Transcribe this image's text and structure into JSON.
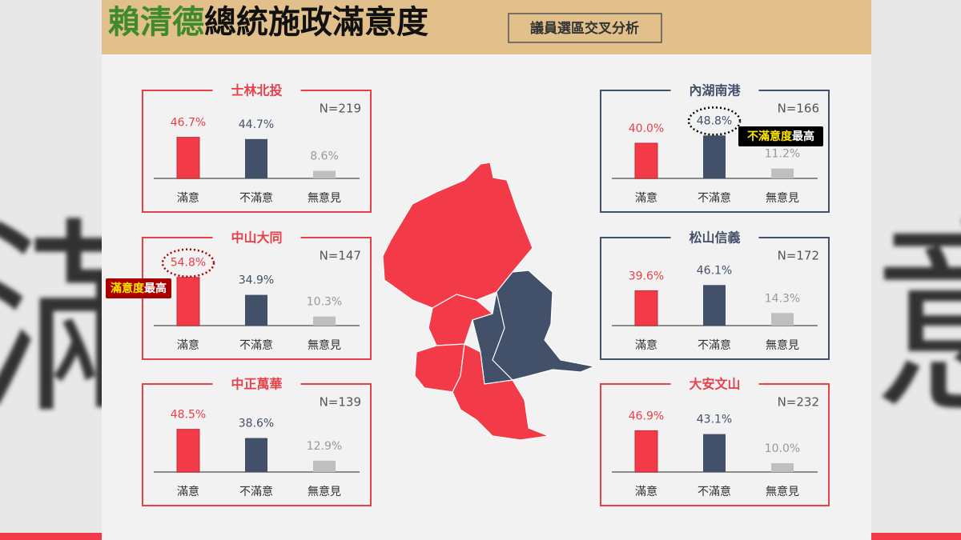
{
  "header": {
    "title_highlight": "賴清德",
    "title_rest": "總統施政滿意度",
    "subtitle": "議員選區交叉分析"
  },
  "background_text": [
    "滿",
    "意"
  ],
  "chart_data": [
    {
      "type": "bar",
      "title": "士林北投",
      "n_label": "N=219",
      "categories": [
        "滿意",
        "不滿意",
        "無意見"
      ],
      "values": [
        46.7,
        44.7,
        8.6
      ],
      "value_labels": [
        "46.7%",
        "44.7%",
        "8.6%"
      ],
      "colors": [
        "#f23a48",
        "#435069",
        "#bfbfbf"
      ],
      "label_colors": [
        "#e8404a",
        "#435069",
        "#999999"
      ],
      "border_color": "#e8404a"
    },
    {
      "type": "bar",
      "title": "中山大同",
      "n_label": "N=147",
      "categories": [
        "滿意",
        "不滿意",
        "無意見"
      ],
      "values": [
        54.8,
        34.9,
        10.3
      ],
      "value_labels": [
        "54.8%",
        "34.9%",
        "10.3%"
      ],
      "colors": [
        "#f23a48",
        "#435069",
        "#bfbfbf"
      ],
      "label_colors": [
        "#e8404a",
        "#435069",
        "#999999"
      ],
      "border_color": "#e8404a",
      "highlight": {
        "index": 0,
        "ring_color": "#a80000",
        "tag": [
          "滿意度",
          "最高"
        ],
        "tag_color": "#a80000"
      }
    },
    {
      "type": "bar",
      "title": "中正萬華",
      "n_label": "N=139",
      "categories": [
        "滿意",
        "不滿意",
        "無意見"
      ],
      "values": [
        48.5,
        38.6,
        12.9
      ],
      "value_labels": [
        "48.5%",
        "38.6%",
        "12.9%"
      ],
      "colors": [
        "#f23a48",
        "#435069",
        "#bfbfbf"
      ],
      "label_colors": [
        "#e8404a",
        "#435069",
        "#999999"
      ],
      "border_color": "#e8404a"
    },
    {
      "type": "bar",
      "title": "內湖南港",
      "n_label": "N=166",
      "categories": [
        "滿意",
        "不滿意",
        "無意見"
      ],
      "values": [
        40.0,
        48.8,
        11.2
      ],
      "value_labels": [
        "40.0%",
        "48.8%",
        "11.2%"
      ],
      "colors": [
        "#f23a48",
        "#435069",
        "#bfbfbf"
      ],
      "label_colors": [
        "#e8404a",
        "#435069",
        "#999999"
      ],
      "border_color": "#435069",
      "highlight": {
        "index": 1,
        "ring_color": "#000000",
        "tag": [
          "不滿意度",
          "最高"
        ],
        "tag_color": "#000000"
      }
    },
    {
      "type": "bar",
      "title": "松山信義",
      "n_label": "N=172",
      "categories": [
        "滿意",
        "不滿意",
        "無意見"
      ],
      "values": [
        39.6,
        46.1,
        14.3
      ],
      "value_labels": [
        "39.6%",
        "46.1%",
        "14.3%"
      ],
      "colors": [
        "#f23a48",
        "#435069",
        "#bfbfbf"
      ],
      "label_colors": [
        "#e8404a",
        "#435069",
        "#999999"
      ],
      "border_color": "#435069"
    },
    {
      "type": "bar",
      "title": "大安文山",
      "n_label": "N=232",
      "categories": [
        "滿意",
        "不滿意",
        "無意見"
      ],
      "values": [
        46.9,
        43.1,
        10.0
      ],
      "value_labels": [
        "46.9%",
        "43.1%",
        "10.0%"
      ],
      "colors": [
        "#f23a48",
        "#435069",
        "#bfbfbf"
      ],
      "label_colors": [
        "#e8404a",
        "#435069",
        "#999999"
      ],
      "border_color": "#e8404a"
    }
  ]
}
